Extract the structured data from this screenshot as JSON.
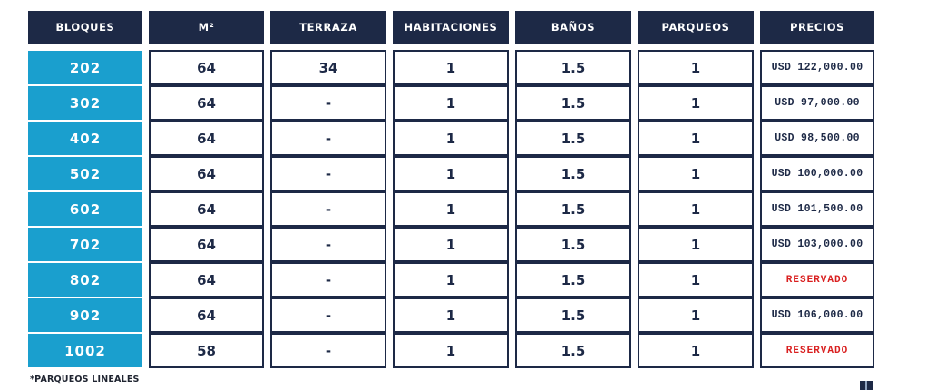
{
  "colors": {
    "header_navy": "#1d2946",
    "block_cyan": "#1a9fce",
    "reserved_red": "#d91f1f",
    "cell_background": "#ffffff"
  },
  "icons": {
    "bottom_right": "logo-mark"
  },
  "table": {
    "columns": [
      {
        "label": "BLOQUES"
      },
      {
        "label": "M²"
      },
      {
        "label": "TERRAZA"
      },
      {
        "label": "HABITACIONES"
      },
      {
        "label": "BAÑOS"
      },
      {
        "label": "PARQUEOS"
      },
      {
        "label": "PRECIOS"
      }
    ],
    "rows": [
      {
        "bloque": "202",
        "m2": "64",
        "terraza": "34",
        "habitaciones": "1",
        "banos": "1.5",
        "parqueos": "1",
        "precio": "USD 122,000.00"
      },
      {
        "bloque": "302",
        "m2": "64",
        "terraza": "-",
        "habitaciones": "1",
        "banos": "1.5",
        "parqueos": "1",
        "precio": "USD 97,000.00"
      },
      {
        "bloque": "402",
        "m2": "64",
        "terraza": "-",
        "habitaciones": "1",
        "banos": "1.5",
        "parqueos": "1",
        "precio": "USD 98,500.00"
      },
      {
        "bloque": "502",
        "m2": "64",
        "terraza": "-",
        "habitaciones": "1",
        "banos": "1.5",
        "parqueos": "1",
        "precio": "USD 100,000.00"
      },
      {
        "bloque": "602",
        "m2": "64",
        "terraza": "-",
        "habitaciones": "1",
        "banos": "1.5",
        "parqueos": "1",
        "precio": "USD 101,500.00"
      },
      {
        "bloque": "702",
        "m2": "64",
        "terraza": "-",
        "habitaciones": "1",
        "banos": "1.5",
        "parqueos": "1",
        "precio": "USD 103,000.00"
      },
      {
        "bloque": "802",
        "m2": "64",
        "terraza": "-",
        "habitaciones": "1",
        "banos": "1.5",
        "parqueos": "1",
        "precio": "RESERVADO"
      },
      {
        "bloque": "902",
        "m2": "64",
        "terraza": "-",
        "habitaciones": "1",
        "banos": "1.5",
        "parqueos": "1",
        "precio": "USD 106,000.00"
      },
      {
        "bloque": "1002",
        "m2": "58",
        "terraza": "-",
        "habitaciones": "1",
        "banos": "1.5",
        "parqueos": "1",
        "precio": "RESERVADO"
      }
    ],
    "reserved_label": "RESERVADO"
  },
  "footnote": "*PARQUEOS LINEALES"
}
